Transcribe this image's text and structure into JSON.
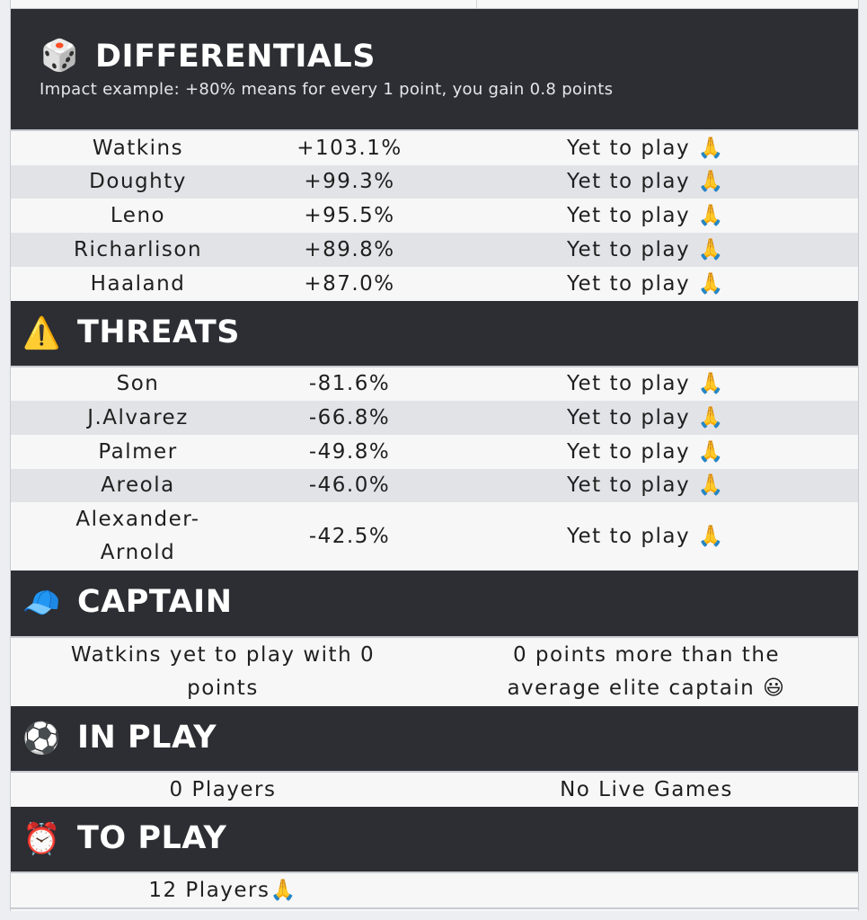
{
  "differentials": {
    "icon": "dice-icon",
    "emoji": "🎲",
    "title": "DIFFERENTIALS",
    "subtitle": "Impact example: +80% means for every 1 point, you gain 0.8 points",
    "rows": [
      {
        "name": "Watkins",
        "impact": "+103.1%",
        "status": "Yet to play 🙏"
      },
      {
        "name": "Doughty",
        "impact": "+99.3%",
        "status": "Yet to play 🙏"
      },
      {
        "name": "Leno",
        "impact": "+95.5%",
        "status": "Yet to play 🙏"
      },
      {
        "name": "Richarlison",
        "impact": "+89.8%",
        "status": "Yet to play 🙏"
      },
      {
        "name": "Haaland",
        "impact": "+87.0%",
        "status": "Yet to play 🙏"
      }
    ]
  },
  "threats": {
    "icon": "warning-icon",
    "emoji": "⚠️",
    "title": "THREATS",
    "rows": [
      {
        "name": "Son",
        "impact": "-81.6%",
        "status": "Yet to play 🙏"
      },
      {
        "name": "J.Alvarez",
        "impact": "-66.8%",
        "status": "Yet to play 🙏"
      },
      {
        "name": "Palmer",
        "impact": "-49.8%",
        "status": "Yet to play 🙏"
      },
      {
        "name": "Areola",
        "impact": "-46.0%",
        "status": "Yet to play 🙏"
      },
      {
        "name": "Alexander-Arnold",
        "impact": "-42.5%",
        "status": "Yet to play 🙏"
      }
    ]
  },
  "captain": {
    "icon": "cap-icon",
    "emoji": "🧢",
    "title": "CAPTAIN",
    "left": "Watkins yet to play with 0 points",
    "right": "0 points more than the average elite captain 😃"
  },
  "in_play": {
    "icon": "football-icon",
    "emoji": "⚽",
    "title": "IN PLAY",
    "left": "0 Players",
    "right": "No Live Games"
  },
  "to_play": {
    "icon": "alarm-clock-icon",
    "emoji": "⏰",
    "title": "TO PLAY",
    "left": "12 Players🙏"
  },
  "colors": {
    "header_bg": "#2c2e33",
    "row_alt_bg": "#e2e3e6",
    "row_bg": "#f7f7f7"
  }
}
